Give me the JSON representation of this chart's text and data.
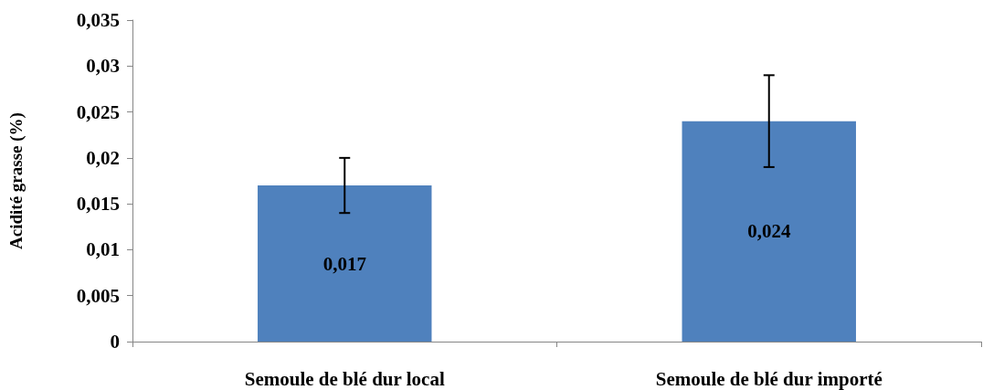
{
  "chart_data": {
    "type": "bar",
    "ylabel": "Acidité grasse (%)",
    "categories": [
      "Semoule de blé dur local",
      "Semoule de blé dur importé"
    ],
    "values": [
      0.017,
      0.024
    ],
    "color": "#4f81bd",
    "errors": [
      0.003,
      0.005
    ],
    "value_labels": [
      "0,017",
      "0,024"
    ],
    "ylim": [
      0,
      0.035
    ],
    "yticks": [
      {
        "value": 0,
        "label": "0"
      },
      {
        "value": 0.005,
        "label": "0,005"
      },
      {
        "value": 0.01,
        "label": "0,01"
      },
      {
        "value": 0.015,
        "label": "0,015"
      },
      {
        "value": 0.02,
        "label": "0,02"
      },
      {
        "value": 0.025,
        "label": "0,025"
      },
      {
        "value": 0.03,
        "label": "0,03"
      },
      {
        "value": 0.035,
        "label": "0,035"
      }
    ],
    "grid": false
  }
}
